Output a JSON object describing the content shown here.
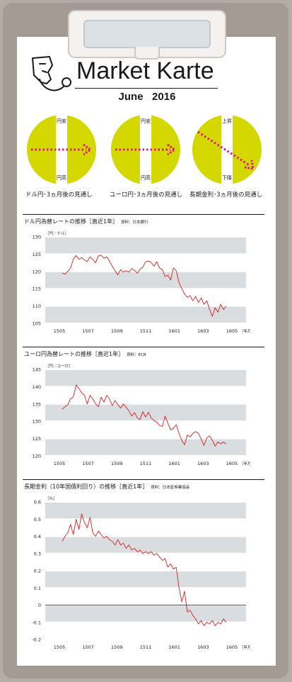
{
  "header": {
    "title": "Market Karte",
    "date": "June   2016"
  },
  "outlooks": [
    {
      "top_label": "円安",
      "bottom_label": "円高",
      "caption": "ドル円･3ヵ月後の見通し",
      "direction": "flat"
    },
    {
      "top_label": "円安",
      "bottom_label": "円高",
      "caption": "ユーロ円･3ヵ月後の見通し",
      "direction": "flat"
    },
    {
      "top_label": "上昇",
      "bottom_label": "下降",
      "caption": "長期金利･3ヵ月後の見通し",
      "direction": "down"
    }
  ],
  "colors": {
    "circle": "#d4d800",
    "arrow": "#d81b78",
    "band": "#d9dde0",
    "line": "#d42020"
  },
  "charts": [
    {
      "title": "ドル円為替レートの推移［直近1年］",
      "source": "資料：日本銀行",
      "chart_data": {
        "type": "line",
        "unit_label": "［円／ドル］",
        "ylim": [
          105,
          130
        ],
        "yticks": [
          "130",
          "125",
          "120",
          "115",
          "110",
          "105"
        ],
        "yvals": [
          130,
          125,
          120,
          115,
          110,
          105
        ],
        "xticks": [
          "1505",
          "1507",
          "1509",
          "1511",
          "1601",
          "1603",
          "1605"
        ],
        "x_unit": "［年月］",
        "series": [
          {
            "values": [
              119.5,
              119.2,
              120.0,
              121.0,
              123.5,
              124.6,
              123.5,
              124.0,
              123.3,
              122.8,
              124.2,
              123.5,
              122.5,
              124.5,
              124.7,
              123.8,
              124.2,
              123.0,
              121.5,
              120.2,
              119.0,
              120.5,
              119.8,
              120.2,
              119.8,
              120.8,
              120.3,
              119.5,
              120.6,
              121.2,
              122.8,
              123.0,
              122.6,
              121.5,
              122.8,
              121.0,
              120.5,
              118.5,
              118.9,
              117.5,
              121.0,
              120.2,
              116.8,
              115.0,
              113.5,
              112.5,
              113.0,
              111.5,
              112.8,
              111.0,
              112.3,
              110.5,
              111.5,
              109.0,
              107.0,
              109.5,
              108.2,
              110.5,
              109.0,
              110.0
            ]
          }
        ]
      }
    },
    {
      "title": "ユーロ円為替レートの推移［直近1年］",
      "source": "資料：ECB",
      "chart_data": {
        "type": "line",
        "unit_label": "［円／ユーロ］",
        "ylim": [
          120,
          145
        ],
        "yticks": [
          "145",
          "140",
          "135",
          "130",
          "125",
          "120"
        ],
        "yvals": [
          145,
          140,
          135,
          130,
          125,
          120
        ],
        "xticks": [
          "1505",
          "1507",
          "1509",
          "1511",
          "1601",
          "1603",
          "1605"
        ],
        "x_unit": "［年月］",
        "series": [
          {
            "values": [
              133.5,
              134.2,
              134.8,
              136.5,
              137.0,
              140.5,
              139.5,
              138.2,
              137.5,
              135.0,
              137.5,
              136.5,
              135.0,
              134.2,
              137.0,
              135.5,
              137.5,
              136.5,
              134.5,
              136.0,
              134.8,
              133.8,
              135.0,
              134.0,
              133.0,
              131.5,
              132.5,
              131.0,
              130.5,
              132.8,
              131.2,
              132.6,
              131.0,
              130.2,
              129.8,
              128.8,
              128.5,
              131.5,
              129.5,
              127.5,
              128.0,
              129.0,
              126.5,
              124.5,
              123.2,
              126.0,
              125.5,
              126.5,
              127.0,
              126.5,
              124.8,
              123.0,
              125.2,
              125.8,
              124.5,
              122.8,
              124.0,
              123.5,
              124.0,
              123.4
            ]
          }
        ]
      }
    },
    {
      "title": "長期金利（10年国債利回り）の推移［直近1年］",
      "source": "資料：日本証券業協会",
      "chart_data": {
        "type": "line",
        "unit_label": "［％］",
        "ylim": [
          -0.2,
          0.6
        ],
        "yticks": [
          "0.6",
          "0.5",
          "0.4",
          "0.3",
          "0.2",
          "0.1",
          "0",
          "-0.1",
          "-0.2"
        ],
        "yvals": [
          0.6,
          0.5,
          0.4,
          0.3,
          0.2,
          0.1,
          0,
          -0.1,
          -0.2
        ],
        "xticks": [
          "1505",
          "1507",
          "1509",
          "1511",
          "1601",
          "1603",
          "1605"
        ],
        "x_unit": "［年月］",
        "series": [
          {
            "values": [
              0.37,
              0.4,
              0.42,
              0.47,
              0.41,
              0.5,
              0.44,
              0.53,
              0.48,
              0.45,
              0.51,
              0.42,
              0.4,
              0.43,
              0.41,
              0.39,
              0.4,
              0.38,
              0.37,
              0.35,
              0.38,
              0.35,
              0.36,
              0.33,
              0.35,
              0.32,
              0.33,
              0.31,
              0.32,
              0.3,
              0.31,
              0.3,
              0.31,
              0.29,
              0.3,
              0.28,
              0.26,
              0.27,
              0.22,
              0.24,
              0.21,
              0.22,
              0.1,
              0.02,
              0.08,
              -0.04,
              -0.03,
              -0.06,
              -0.08,
              -0.11,
              -0.09,
              -0.12,
              -0.1,
              -0.11,
              -0.09,
              -0.12,
              -0.1,
              -0.11,
              -0.08,
              -0.1
            ]
          }
        ]
      }
    }
  ]
}
